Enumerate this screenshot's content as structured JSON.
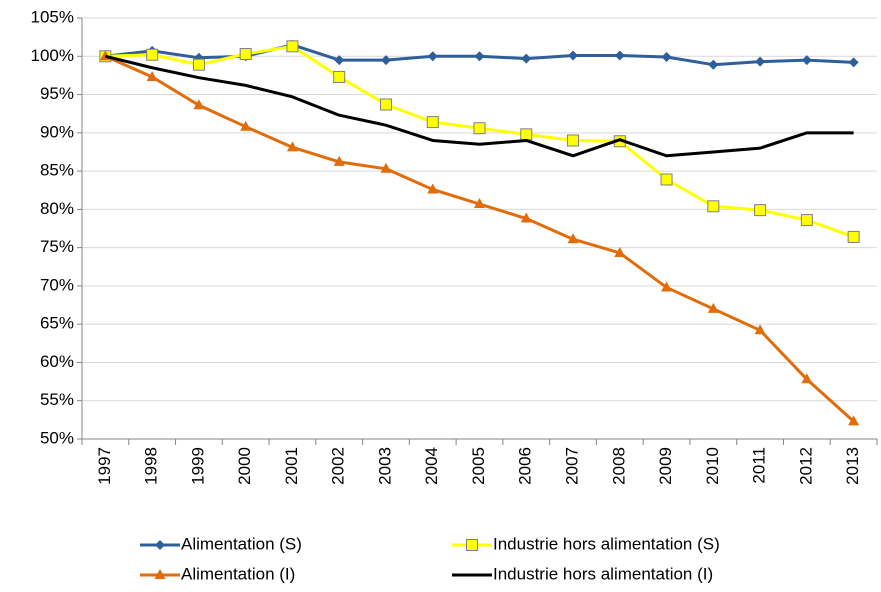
{
  "chart_data": {
    "type": "line",
    "categories": [
      "1997",
      "1998",
      "1999",
      "2000",
      "2001",
      "2002",
      "2003",
      "2004",
      "2005",
      "2006",
      "2007",
      "2008",
      "2009",
      "2010",
      "2011",
      "2012",
      "2013"
    ],
    "series": [
      {
        "name": "Alimentation (S)",
        "color": "#2e5f9a",
        "marker": "diamond",
        "values": [
          100,
          100.7,
          99.8,
          100,
          101.5,
          99.5,
          99.5,
          100,
          100,
          99.7,
          100.1,
          100.1,
          99.9,
          98.9,
          99.3,
          99.5,
          99.2
        ]
      },
      {
        "name": "Industrie hors alimentation (S)",
        "color": "#ffff00",
        "marker": "square",
        "values": [
          100,
          100.2,
          98.9,
          100.3,
          101.3,
          97.3,
          93.7,
          91.4,
          90.6,
          89.8,
          89.0,
          88.9,
          83.9,
          80.4,
          79.9,
          78.6,
          76.4
        ]
      },
      {
        "name": "Alimentation (I)",
        "color": "#e36c0a",
        "marker": "triangle",
        "values": [
          100,
          97.3,
          93.6,
          90.8,
          88.1,
          86.2,
          85.3,
          82.6,
          80.7,
          78.8,
          76.1,
          74.3,
          69.8,
          67.0,
          64.2,
          57.8,
          52.3
        ]
      },
      {
        "name": "Industrie hors alimentation (I)",
        "color": "#000000",
        "marker": "none",
        "values": [
          100,
          98.5,
          97.2,
          96.2,
          94.7,
          92.3,
          91.0,
          89.0,
          88.5,
          89.0,
          87.0,
          89.1,
          87.0,
          87.5,
          88.0,
          90.0,
          90.0
        ]
      }
    ],
    "ylim": [
      50,
      105
    ],
    "yticks": [
      {
        "value": 50,
        "label": "50%"
      },
      {
        "value": 55,
        "label": "55%"
      },
      {
        "value": 60,
        "label": "60%"
      },
      {
        "value": 65,
        "label": "65%"
      },
      {
        "value": 70,
        "label": "70%"
      },
      {
        "value": 75,
        "label": "75%"
      },
      {
        "value": 80,
        "label": "80%"
      },
      {
        "value": 85,
        "label": "85%"
      },
      {
        "value": 90,
        "label": "90%"
      },
      {
        "value": 95,
        "label": "95%"
      },
      {
        "value": 100,
        "label": "100%"
      },
      {
        "value": 105,
        "label": "105%"
      }
    ],
    "grid": true,
    "legend": "bottom"
  }
}
